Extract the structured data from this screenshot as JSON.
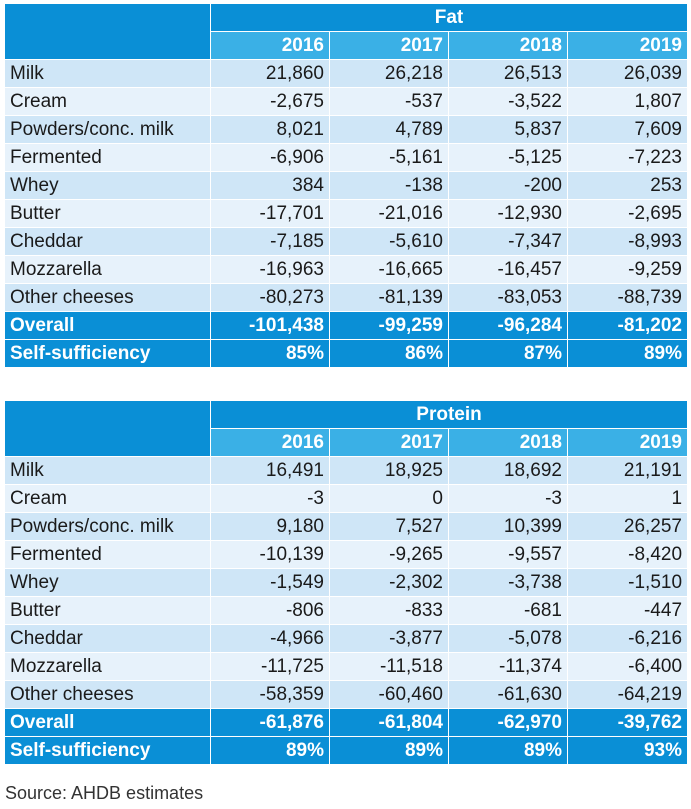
{
  "colors": {
    "header_dark": "#0a8fd6",
    "header_light": "#3ab0e6",
    "row_a": "#cfe6f7",
    "row_b": "#e7f2fb"
  },
  "tables": [
    {
      "title": "Fat",
      "years": [
        "2016",
        "2017",
        "2018",
        "2019"
      ],
      "rows": [
        {
          "label": "Milk",
          "values": [
            "21,860",
            "26,218",
            "26,513",
            "26,039"
          ]
        },
        {
          "label": "Cream",
          "values": [
            "-2,675",
            "-537",
            "-3,522",
            "1,807"
          ]
        },
        {
          "label": "Powders/conc. milk",
          "values": [
            "8,021",
            "4,789",
            "5,837",
            "7,609"
          ]
        },
        {
          "label": "Fermented",
          "values": [
            "-6,906",
            "-5,161",
            "-5,125",
            "-7,223"
          ]
        },
        {
          "label": "Whey",
          "values": [
            "384",
            "-138",
            "-200",
            "253"
          ]
        },
        {
          "label": "Butter",
          "values": [
            "-17,701",
            "-21,016",
            "-12,930",
            "-2,695"
          ]
        },
        {
          "label": "Cheddar",
          "values": [
            "-7,185",
            "-5,610",
            "-7,347",
            "-8,993"
          ]
        },
        {
          "label": "Mozzarella",
          "values": [
            "-16,963",
            "-16,665",
            "-16,457",
            "-9,259"
          ]
        },
        {
          "label": "Other cheeses",
          "values": [
            "-80,273",
            "-81,139",
            "-83,053",
            "-88,739"
          ]
        }
      ],
      "totals": [
        {
          "label": "Overall",
          "values": [
            "-101,438",
            "-99,259",
            "-96,284",
            "-81,202"
          ]
        },
        {
          "label": "Self-sufficiency",
          "values": [
            "85%",
            "86%",
            "87%",
            "89%"
          ]
        }
      ]
    },
    {
      "title": "Protein",
      "years": [
        "2016",
        "2017",
        "2018",
        "2019"
      ],
      "rows": [
        {
          "label": "Milk",
          "values": [
            "16,491",
            "18,925",
            "18,692",
            "21,191"
          ]
        },
        {
          "label": "Cream",
          "values": [
            "-3",
            "0",
            "-3",
            "1"
          ]
        },
        {
          "label": "Powders/conc. milk",
          "values": [
            "9,180",
            "7,527",
            "10,399",
            "26,257"
          ]
        },
        {
          "label": "Fermented",
          "values": [
            "-10,139",
            "-9,265",
            "-9,557",
            "-8,420"
          ]
        },
        {
          "label": "Whey",
          "values": [
            "-1,549",
            "-2,302",
            "-3,738",
            "-1,510"
          ]
        },
        {
          "label": "Butter",
          "values": [
            "-806",
            "-833",
            "-681",
            "-447"
          ]
        },
        {
          "label": "Cheddar",
          "values": [
            "-4,966",
            "-3,877",
            "-5,078",
            "-6,216"
          ]
        },
        {
          "label": "Mozzarella",
          "values": [
            "-11,725",
            "-11,518",
            "-11,374",
            "-6,400"
          ]
        },
        {
          "label": "Other cheeses",
          "values": [
            "-58,359",
            "-60,460",
            "-61,630",
            "-64,219"
          ]
        }
      ],
      "totals": [
        {
          "label": "Overall",
          "values": [
            "-61,876",
            "-61,804",
            "-62,970",
            "-39,762"
          ]
        },
        {
          "label": "Self-sufficiency",
          "values": [
            "89%",
            "89%",
            "89%",
            "93%"
          ]
        }
      ]
    }
  ],
  "source": "Source: AHDB estimates"
}
